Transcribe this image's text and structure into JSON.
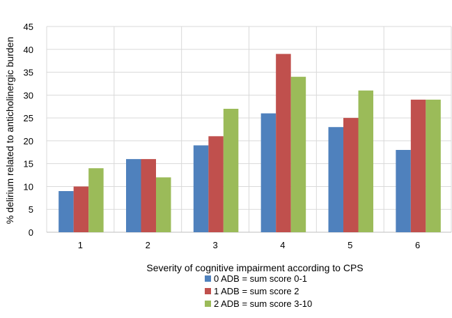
{
  "chart_data": {
    "type": "bar",
    "title": "",
    "xlabel": "Severity of cognitive impairment according to CPS",
    "ylabel": "% delirium  related to anticholinergic burden",
    "categories": [
      "1",
      "2",
      "3",
      "4",
      "5",
      "6"
    ],
    "yticks": [
      "0",
      "5",
      "10",
      "15",
      "20",
      "25",
      "30",
      "35",
      "40",
      "45"
    ],
    "ylim": [
      0,
      45
    ],
    "ytick_step": 5,
    "grid": "both",
    "legend_position": "bottom",
    "series": [
      {
        "name": "0 ADB = sum score 0-1",
        "color": "#4F81BD",
        "values": [
          9,
          16,
          19,
          26,
          23,
          18
        ]
      },
      {
        "name": "1 ADB = sum score 2",
        "color": "#C0504D",
        "values": [
          10,
          16,
          21,
          39,
          25,
          29
        ]
      },
      {
        "name": "2 ADB = sum score 3-10",
        "color": "#9BBB59",
        "values": [
          14,
          12,
          27,
          34,
          31,
          29
        ]
      }
    ]
  }
}
